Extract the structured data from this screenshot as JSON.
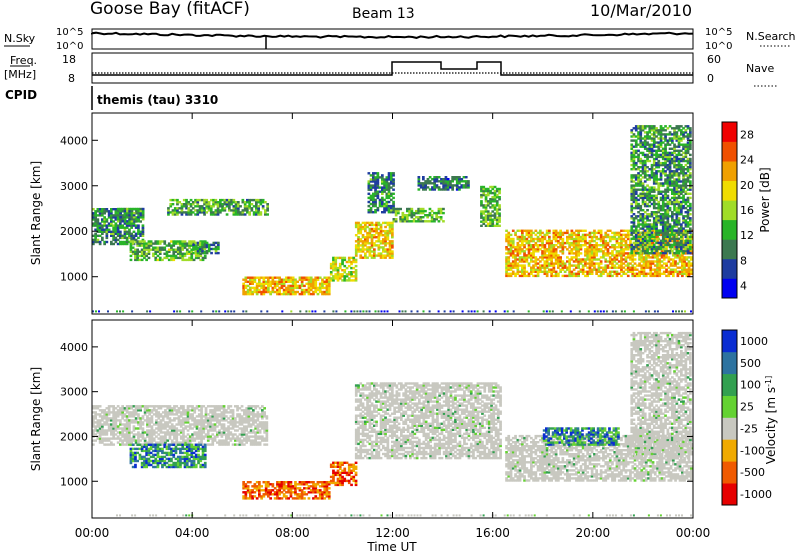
{
  "header": {
    "station": "Goose Bay (fitACF)",
    "beam": "Beam 13",
    "date": "10/Mar/2010"
  },
  "summary_panels": {
    "nsky_label": "N.Sky",
    "nsky_ticks": [
      "10^5",
      "10^0"
    ],
    "nsearch_label": "N.Search",
    "freq_label_1": "Freq.",
    "freq_label_2": "[MHz]",
    "freq_ticks": [
      "18",
      "8"
    ],
    "nave_label": "Nave",
    "nave_ticks": [
      "60",
      "0"
    ],
    "cpid_label": "CPID",
    "cpid_value": "themis (tau) 3310"
  },
  "colors": {
    "power": [
      "#0000f0",
      "#1e3ca0",
      "#3c7850",
      "#28b428",
      "#a0dc28",
      "#f0dc00",
      "#f0a000",
      "#f05000",
      "#f00000"
    ],
    "velocity": [
      "#e60000",
      "#f05a00",
      "#f0aa00",
      "#c8c8c0",
      "#64d232",
      "#32a050",
      "#2d73a0",
      "#0a2dd2"
    ]
  },
  "chart_data": [
    {
      "type": "heatmap",
      "name": "backscatter power",
      "ylabel": "Slant Range [km]",
      "ylim": [
        180,
        4600
      ],
      "yticks": [
        "1000",
        "2000",
        "3000",
        "4000"
      ],
      "xlabel": "Time UT",
      "xlim": [
        "00:00",
        "24:00"
      ],
      "xticks": [
        "00:00",
        "04:00",
        "08:00",
        "12:00",
        "16:00",
        "20:00",
        "00:00"
      ],
      "colorbar_label": "Power [dB]",
      "colorbar_ticks": [
        "28",
        "24",
        "20",
        "16",
        "12",
        "8",
        "4"
      ],
      "colorbar_range": [
        0,
        30
      ],
      "regions": [
        {
          "t": [
            0.0,
            2.0
          ],
          "r": [
            1700,
            2500
          ],
          "level": 9
        },
        {
          "t": [
            1.0,
            2.0
          ],
          "r": [
            2200,
            2500
          ],
          "level": 10
        },
        {
          "t": [
            1.5,
            4.5
          ],
          "r": [
            1350,
            1800
          ],
          "level": 12
        },
        {
          "t": [
            3.0,
            7.0
          ],
          "r": [
            2350,
            2700
          ],
          "level": 11
        },
        {
          "t": [
            4.0,
            5.0
          ],
          "r": [
            1500,
            1750
          ],
          "level": 10
        },
        {
          "t": [
            6.0,
            9.5
          ],
          "r": [
            600,
            1000
          ],
          "level": 20
        },
        {
          "t": [
            9.5,
            10.5
          ],
          "r": [
            900,
            1400
          ],
          "level": 17
        },
        {
          "t": [
            10.5,
            12.0
          ],
          "r": [
            1400,
            2200
          ],
          "level": 19
        },
        {
          "t": [
            11.0,
            12.0
          ],
          "r": [
            2400,
            3300
          ],
          "level": 9
        },
        {
          "t": [
            12.0,
            14.0
          ],
          "r": [
            2200,
            2500
          ],
          "level": 12
        },
        {
          "t": [
            13.0,
            15.0
          ],
          "r": [
            2900,
            3200
          ],
          "level": 8
        },
        {
          "t": [
            15.5,
            16.3
          ],
          "r": [
            2100,
            3000
          ],
          "level": 12
        },
        {
          "t": [
            16.5,
            23.9
          ],
          "r": [
            1000,
            2000
          ],
          "level": 20
        },
        {
          "t": [
            21.5,
            23.9
          ],
          "r": [
            1500,
            4300
          ],
          "level": 10
        }
      ]
    },
    {
      "type": "heatmap",
      "name": "line-of-sight velocity",
      "ylabel": "Slant Range [km]",
      "ylim": [
        180,
        4600
      ],
      "yticks": [
        "1000",
        "2000",
        "3000",
        "4000"
      ],
      "xlabel": "Time UT",
      "xlim": [
        "00:00",
        "24:00"
      ],
      "xticks": [
        "00:00",
        "04:00",
        "08:00",
        "12:00",
        "16:00",
        "20:00",
        "00:00"
      ],
      "colorbar_label": "Velocity [m s^-1]",
      "colorbar_ticks": [
        "1000",
        "500",
        "100",
        "25",
        "-25",
        "-100",
        "-500",
        "-1000"
      ],
      "regions": [
        {
          "t": [
            0.0,
            7.0
          ],
          "r": [
            1800,
            2700
          ],
          "velocity": 0
        },
        {
          "t": [
            1.5,
            4.5
          ],
          "r": [
            1300,
            1800
          ],
          "velocity": 300
        },
        {
          "t": [
            6.0,
            9.5
          ],
          "r": [
            600,
            1000
          ],
          "velocity": -200
        },
        {
          "t": [
            9.5,
            10.5
          ],
          "r": [
            900,
            1400
          ],
          "velocity": -200
        },
        {
          "t": [
            10.5,
            16.3
          ],
          "r": [
            1500,
            3200
          ],
          "velocity": 0
        },
        {
          "t": [
            16.5,
            23.9
          ],
          "r": [
            1000,
            2000
          ],
          "velocity": 0
        },
        {
          "t": [
            18.0,
            21.0
          ],
          "r": [
            1800,
            2200
          ],
          "velocity": 400
        },
        {
          "t": [
            21.5,
            23.9
          ],
          "r": [
            1500,
            4300
          ],
          "velocity": 0
        }
      ]
    }
  ]
}
